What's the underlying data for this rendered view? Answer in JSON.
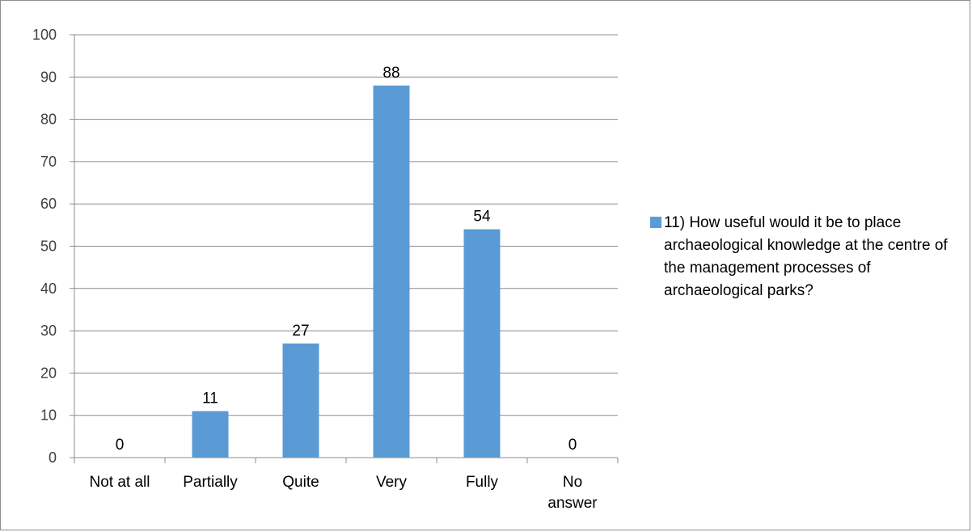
{
  "chart_data": {
    "type": "bar",
    "categories": [
      [
        "Not at all"
      ],
      [
        "Partially"
      ],
      [
        "Quite"
      ],
      [
        "Very"
      ],
      [
        "Fully"
      ],
      [
        "No",
        "answer"
      ]
    ],
    "series": [
      {
        "name": "11) How useful would it be to place archaeological knowledge at the centre of the management processes of archaeological parks?",
        "values": [
          0,
          11,
          27,
          88,
          54,
          0
        ],
        "color": "#5b9bd5"
      }
    ],
    "data_labels": [
      "0",
      "11",
      "27",
      "88",
      "54",
      "0"
    ],
    "y_ticks": [
      "0",
      "10",
      "20",
      "30",
      "40",
      "50",
      "60",
      "70",
      "80",
      "90",
      "100"
    ],
    "ylim": [
      0,
      100
    ],
    "grid": true,
    "legend_position": "right"
  }
}
